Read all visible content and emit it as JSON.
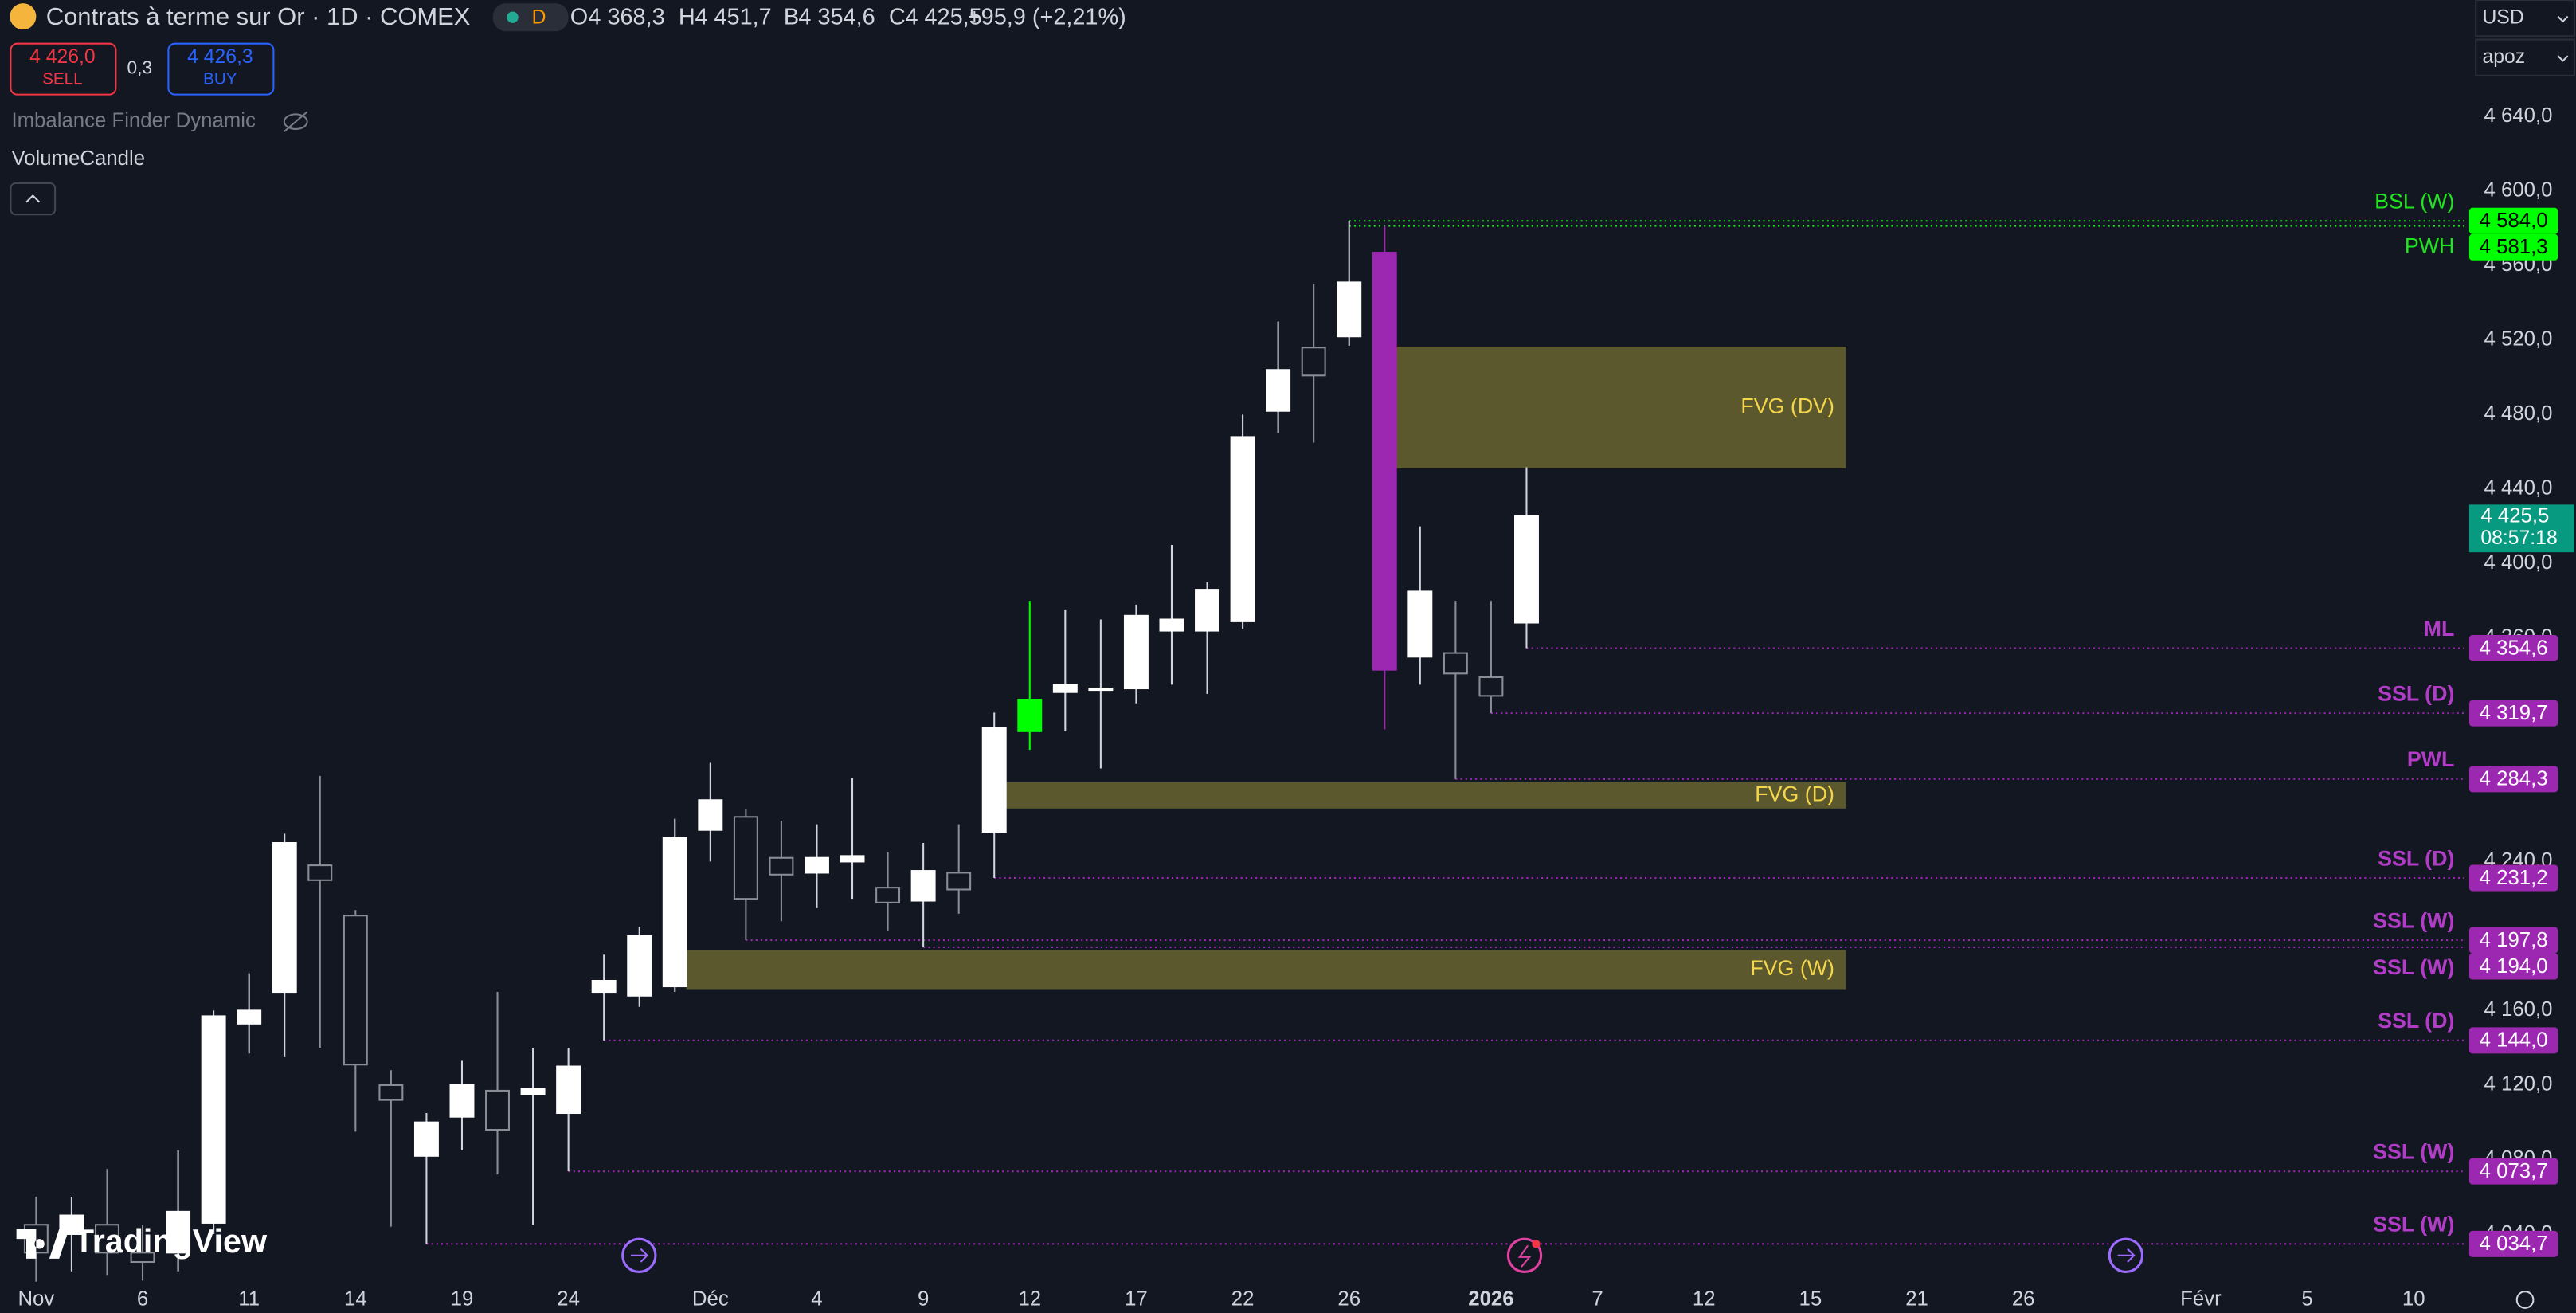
{
  "header": {
    "symbol": "Contrats à terme sur Or · 1D · COMEX",
    "badge": "D",
    "open_label": "O",
    "open": "4 368,3",
    "high_label": "H",
    "high": "4 451,7",
    "low_label": "B",
    "low": "4 354,6",
    "close_label": "C",
    "close": "4 425,5",
    "change": "+95,9 (+2,21%)",
    "sell_price": "4 426,0",
    "sell": "SELL",
    "spread": "0,3",
    "buy_price": "4 426,3",
    "buy": "BUY",
    "indicators": [
      "Imbalance Finder Dynamic",
      "VolumeCandle"
    ],
    "currency": "USD",
    "user": "apoz",
    "logo": "TradingView"
  },
  "chart_data": {
    "type": "candlestick",
    "categories": [
      "Nov",
      null,
      null,
      "6",
      null,
      null,
      "11",
      null,
      null,
      "14",
      null,
      null,
      "19",
      null,
      null,
      "24",
      null,
      null,
      null,
      "Déc",
      null,
      null,
      "4",
      null,
      null,
      "9",
      null,
      null,
      "12",
      null,
      null,
      "17",
      null,
      null,
      "22",
      null,
      null,
      "26",
      null,
      null,
      null,
      "2026",
      null,
      null,
      "7",
      null,
      null,
      "12",
      null,
      null,
      "15",
      null,
      null,
      "21",
      null,
      null,
      "26",
      null,
      null,
      null,
      null,
      "Févr",
      null,
      null,
      "5",
      null,
      null,
      "10"
    ],
    "open": [
      4045,
      4040,
      4045,
      4030,
      4030,
      4046,
      4153,
      4170,
      4238,
      4211,
      4120,
      4082,
      4103,
      4117,
      4115,
      4105,
      4170,
      4168,
      4173,
      4257,
      4264,
      4242,
      4234,
      4240,
      4226,
      4219,
      4234,
      4256,
      4310,
      4331,
      4333,
      4333,
      4364,
      4364,
      4369,
      4482,
      4516,
      4522,
      4567,
      4350,
      4352,
      4339,
      4368.3,
      null,
      null,
      null,
      null,
      null,
      null,
      null,
      null,
      null,
      null,
      null,
      null,
      null,
      null,
      null,
      null,
      null,
      null,
      null,
      null,
      null,
      null,
      null,
      null,
      null
    ],
    "high": [
      4060,
      4060,
      4075,
      4045,
      4085,
      4160,
      4180,
      4255,
      4286,
      4214,
      4128,
      4105,
      4133,
      4170,
      4140,
      4140,
      4190,
      4205,
      4263,
      4293,
      4268,
      4262,
      4260,
      4285,
      4245,
      4250,
      4260,
      4320,
      4380,
      4375,
      4370,
      4378,
      4410,
      4390,
      4480,
      4530,
      4550,
      4584,
      4581.3,
      4420,
      4380,
      4380,
      4451.7,
      null,
      null,
      null,
      null,
      null,
      null,
      null,
      null,
      null,
      null,
      null,
      null,
      null,
      null,
      null,
      null,
      null,
      null,
      null,
      null,
      null,
      null,
      null,
      null,
      null
    ],
    "low": [
      4010,
      4020,
      4018,
      4015,
      4020,
      4040,
      4137,
      4135,
      4140,
      4095,
      4044,
      4034.7,
      4085,
      4072,
      4045,
      4073.7,
      4144,
      4162,
      4170,
      4240,
      4197.8,
      4208,
      4215,
      4220,
      4203,
      4194,
      4212,
      4231.2,
      4300,
      4310,
      4290,
      4325,
      4335,
      4330,
      4365,
      4470,
      4465,
      4517,
      4311,
      4335,
      4284.3,
      4319.7,
      4354.6,
      null,
      null,
      null,
      null,
      null,
      null,
      null,
      null,
      null,
      null,
      null,
      null,
      null,
      null,
      null,
      null,
      null,
      null,
      null,
      null,
      null,
      null,
      null,
      null,
      null
    ],
    "close": [
      4030,
      4050,
      4030,
      4025,
      4052,
      4157,
      4160,
      4250,
      4230,
      4131,
      4112,
      4100,
      4120,
      4096,
      4118,
      4130,
      4176,
      4200,
      4253,
      4273,
      4220,
      4233,
      4242,
      4243,
      4218,
      4235,
      4225,
      4312,
      4327,
      4335,
      4333,
      4372,
      4370,
      4386,
      4468,
      4504,
      4501,
      4551,
      4343,
      4385,
      4341,
      4329,
      4425.5,
      null,
      null,
      null,
      null,
      null,
      null,
      null,
      null,
      null,
      null,
      null,
      null,
      null,
      null,
      null,
      null,
      null,
      null,
      null,
      null,
      null,
      null,
      null,
      null,
      null
    ],
    "up_color": "#ffffff",
    "down_color": "#131722",
    "down_border": "#8a8d96",
    "special_colors": {
      "28": "#00ff00",
      "38": "#9c27b0"
    },
    "ylim": [
      4014.4,
      4702.6
    ],
    "yticks": [
      {
        "value": 4640,
        "label": "4 640,0"
      },
      {
        "value": 4600,
        "label": "4 600,0"
      },
      {
        "value": 4560,
        "label": "4 560,0"
      },
      {
        "value": 4520,
        "label": "4 520,0"
      },
      {
        "value": 4480,
        "label": "4 480,0"
      },
      {
        "value": 4440,
        "label": "4 440,0"
      },
      {
        "value": 4400,
        "label": "4 400,0"
      },
      {
        "value": 4360,
        "label": "4 360,0"
      },
      {
        "value": 4240,
        "label": "4 240,0"
      },
      {
        "value": 4160,
        "label": "4 160,0"
      },
      {
        "value": 4120,
        "label": "4 120,0"
      },
      {
        "value": 4080,
        "label": "4 080,0"
      },
      {
        "value": 4040,
        "label": "4 040,0"
      }
    ],
    "last": 4425.5,
    "last_label": "4 425,5",
    "countdown": "08:57:18",
    "last_color": "#089981",
    "zones": [
      {
        "label": "FVG (DV)",
        "top": 4516.5,
        "bottom": 4451.2,
        "start": 38,
        "end": 51
      },
      {
        "label": "FVG (D)",
        "top": 4282.6,
        "bottom": 4268.5,
        "start": 27,
        "end": 51
      },
      {
        "label": "FVG (W)",
        "top": 4192.6,
        "bottom": 4171.5,
        "start": 18,
        "end": 51
      }
    ],
    "zone_color": "#5b582d",
    "zone_text_color": "#f5d64a",
    "levels": [
      {
        "label": "BSL (W)",
        "value": 4584.0,
        "value_label": "4 584,0",
        "start": 37,
        "color": "#1ee61e"
      },
      {
        "label": "PWH",
        "value": 4581.3,
        "value_label": "4 581,3",
        "start": 37,
        "color": "#1ee61e"
      },
      {
        "label": "ML",
        "value": 4354.6,
        "value_label": "4 354,6",
        "start": 42,
        "color": "#9c27b0"
      },
      {
        "label": "SSL (D)",
        "value": 4319.7,
        "value_label": "4 319,7",
        "start": 41,
        "color": "#9c27b0"
      },
      {
        "label": "PWL",
        "value": 4284.3,
        "value_label": "4 284,3",
        "start": 40,
        "color": "#9c27b0"
      },
      {
        "label": "SSL (D)",
        "value": 4231.2,
        "value_label": "4 231,2",
        "start": 27,
        "color": "#9c27b0"
      },
      {
        "label": "SSL (W)",
        "value": 4197.8,
        "value_label": "4 197,8",
        "start": 20,
        "color": "#9c27b0"
      },
      {
        "label": "SSL (W)",
        "value": 4194.0,
        "value_label": "4 194,0",
        "start": 25,
        "color": "#9c27b0"
      },
      {
        "label": "SSL (D)",
        "value": 4144.0,
        "value_label": "4 144,0",
        "start": 16,
        "color": "#9c27b0"
      },
      {
        "label": "SSL (W)",
        "value": 4073.7,
        "value_label": "4 073,7",
        "start": 15,
        "color": "#9c27b0"
      },
      {
        "label": "SSL (W)",
        "value": 4034.7,
        "value_label": "4 034,7",
        "start": 11,
        "color": "#9c27b0"
      }
    ]
  }
}
